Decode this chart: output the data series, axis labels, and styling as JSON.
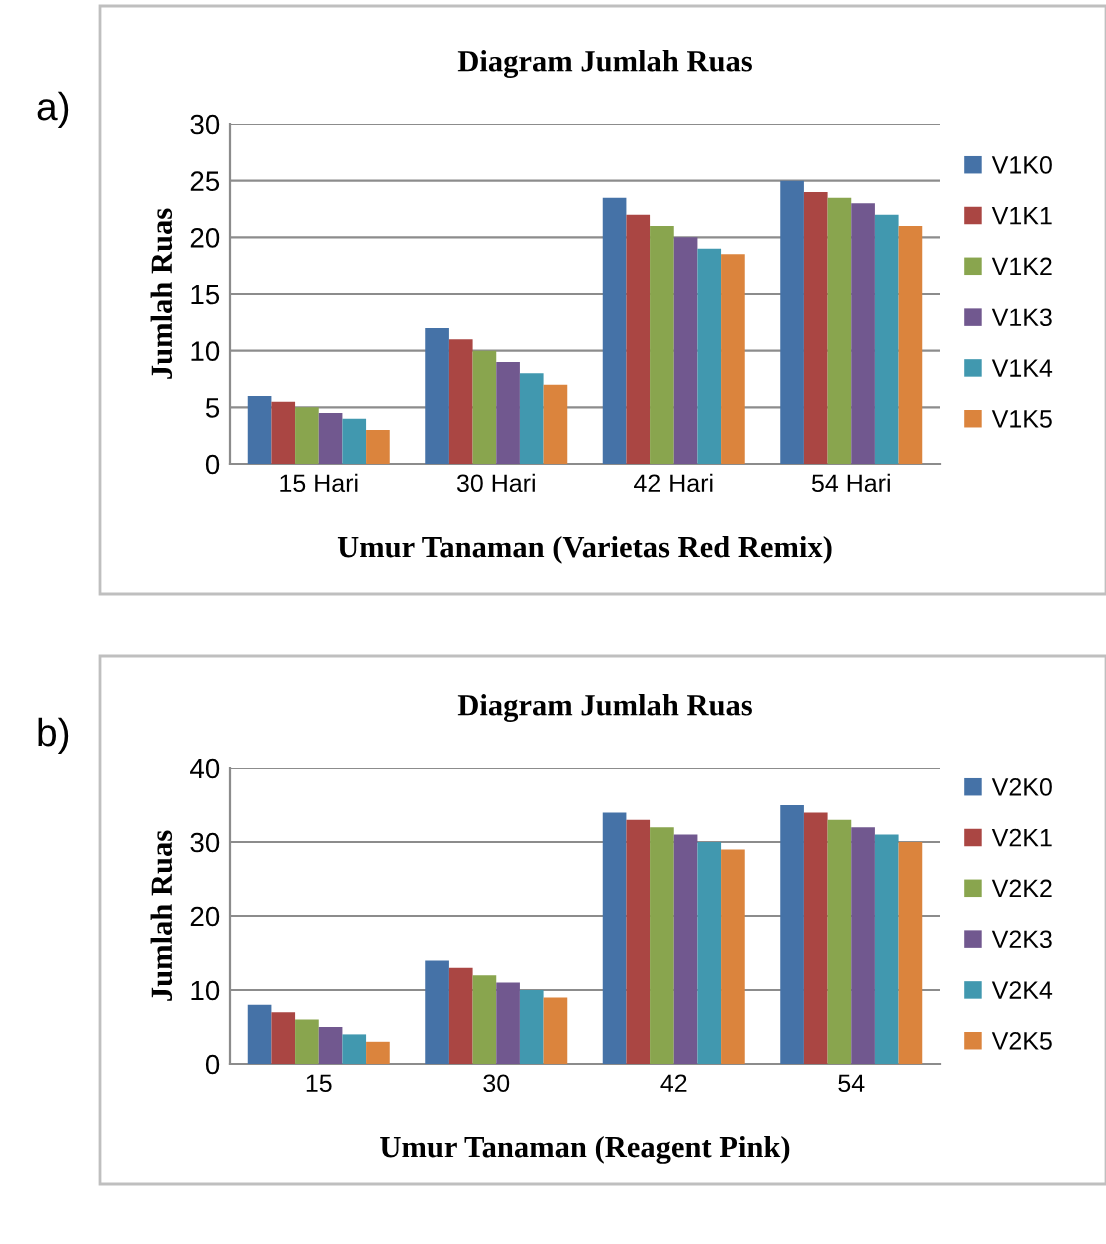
{
  "chart_data": [
    {
      "type": "bar",
      "title": "Diagram Jumlah Ruas",
      "xlabel": "Umur Tanaman (Varietas Red Remix)",
      "ylabel": "Jumlah Ruas",
      "annotations": [
        "a)"
      ],
      "categories": [
        "15 Hari",
        "30 Hari",
        "42 Hari",
        "54 Hari"
      ],
      "ylim": [
        0,
        30
      ],
      "yticks": [
        0,
        5,
        10,
        15,
        20,
        25,
        30
      ],
      "grid": "y",
      "legend": "right",
      "series": [
        {
          "name": "V1K0",
          "color": "#4572a7",
          "values": [
            6,
            12,
            23.5,
            25
          ]
        },
        {
          "name": "V1K1",
          "color": "#aa4643",
          "values": [
            5.5,
            11,
            22,
            24
          ]
        },
        {
          "name": "V1K2",
          "color": "#89a54e",
          "values": [
            5,
            10,
            21,
            23.5
          ]
        },
        {
          "name": "V1K3",
          "color": "#71588f",
          "values": [
            4.5,
            9,
            20,
            23
          ]
        },
        {
          "name": "V1K4",
          "color": "#4198af",
          "values": [
            4,
            8,
            19,
            22
          ]
        },
        {
          "name": "V1K5",
          "color": "#db843d",
          "values": [
            3,
            7,
            18.5,
            21
          ]
        }
      ]
    },
    {
      "type": "bar",
      "title": "Diagram Jumlah Ruas",
      "xlabel": "Umur Tanaman (Reagent Pink)",
      "ylabel": "Jumlah Ruas",
      "annotations": [
        "b)"
      ],
      "categories": [
        "15",
        "30",
        "42",
        "54"
      ],
      "ylim": [
        0,
        40
      ],
      "yticks": [
        0,
        10,
        20,
        30,
        40
      ],
      "grid": "y",
      "legend": "right",
      "series": [
        {
          "name": "V2K0",
          "color": "#4572a7",
          "values": [
            8,
            14,
            34,
            35
          ]
        },
        {
          "name": "V2K1",
          "color": "#aa4643",
          "values": [
            7,
            13,
            33,
            34
          ]
        },
        {
          "name": "V2K2",
          "color": "#89a54e",
          "values": [
            6,
            12,
            32,
            33
          ]
        },
        {
          "name": "V2K3",
          "color": "#71588f",
          "values": [
            5,
            11,
            31,
            32
          ]
        },
        {
          "name": "V2K4",
          "color": "#4198af",
          "values": [
            4,
            10,
            30,
            31
          ]
        },
        {
          "name": "V2K5",
          "color": "#db843d",
          "values": [
            3,
            9,
            29,
            30
          ]
        }
      ]
    }
  ]
}
